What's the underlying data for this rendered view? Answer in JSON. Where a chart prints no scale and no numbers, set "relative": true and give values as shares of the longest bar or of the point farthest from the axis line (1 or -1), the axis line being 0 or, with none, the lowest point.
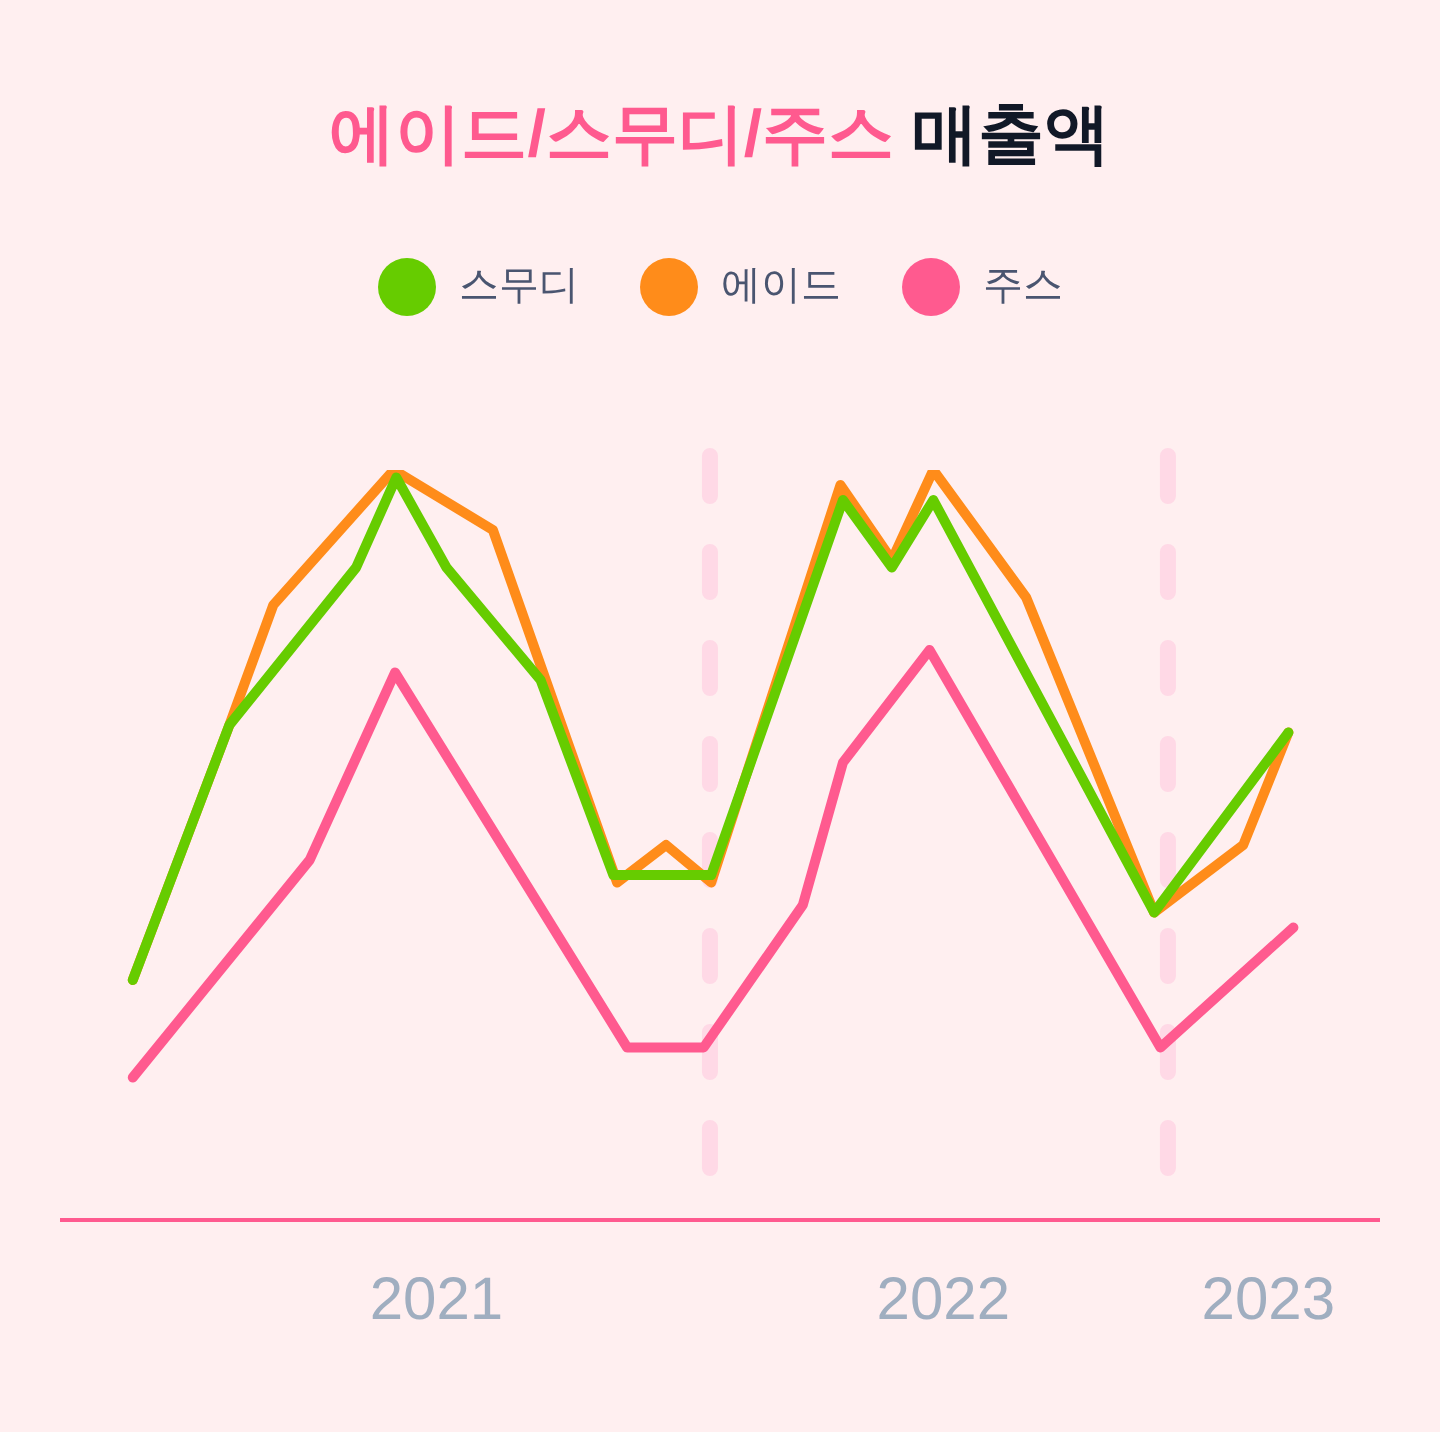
{
  "chart_data": {
    "type": "line",
    "title": "에이드/스무디/주스 매출액",
    "relative": true,
    "legend": "top",
    "marker": "none",
    "xlim": [
      "2020-08-01",
      "2023-06-19"
    ],
    "xticks": [
      {
        "value": "2021-05-28",
        "label": "2021"
      },
      {
        "value": "2022-07-06",
        "label": "2022"
      },
      {
        "value": "2023-03-22",
        "label": "2023"
      }
    ],
    "ref_lines": [
      {
        "axis": "x",
        "value": "2022-01-01",
        "color": "#ffd9e6",
        "line_style": "dashed"
      },
      {
        "axis": "x",
        "value": "2023-01-01",
        "color": "#ffd9e6",
        "line_style": "dashed"
      }
    ],
    "series": [
      {
        "name": "스무디",
        "color": "#66cc00",
        "x": [
          "2020-09-28",
          "2020-12-14",
          "2021-03-25",
          "2021-04-26",
          "2021-06-05",
          "2021-08-19",
          "2021-10-16",
          "2022-01-02",
          "2022-04-17",
          "2022-05-26",
          "2022-06-28",
          "2022-12-21",
          "2023-04-07"
        ],
        "values": [
          0.32,
          0.66,
          0.87,
          0.99,
          0.87,
          0.72,
          0.46,
          0.46,
          0.96,
          0.87,
          0.96,
          0.41,
          0.65
        ]
      },
      {
        "name": "에이드",
        "color": "#ff8c1a",
        "x": [
          "2020-09-28",
          "2020-12-14",
          "2021-01-18",
          "2021-04-24",
          "2021-07-12",
          "2021-10-19",
          "2021-11-27",
          "2022-01-02",
          "2022-04-15",
          "2022-05-26",
          "2022-06-28",
          "2022-09-10",
          "2022-12-21",
          "2023-03-02",
          "2023-04-07"
        ],
        "values": [
          0.32,
          0.66,
          0.82,
          1,
          0.92,
          0.45,
          0.5,
          0.45,
          0.98,
          0.88,
          1,
          0.83,
          0.41,
          0.5,
          0.65
        ]
      },
      {
        "name": "주스",
        "color": "#ff5a8f",
        "x": [
          "2020-09-28",
          "2021-02-16",
          "2021-04-25",
          "2021-10-27",
          "2021-12-27",
          "2022-03-16",
          "2022-04-17",
          "2022-06-25",
          "2022-12-26",
          "2023-04-11"
        ],
        "values": [
          0.19,
          0.48,
          0.73,
          0.23,
          0.23,
          0.42,
          0.61,
          0.76,
          0.23,
          0.39
        ]
      }
    ]
  }
}
